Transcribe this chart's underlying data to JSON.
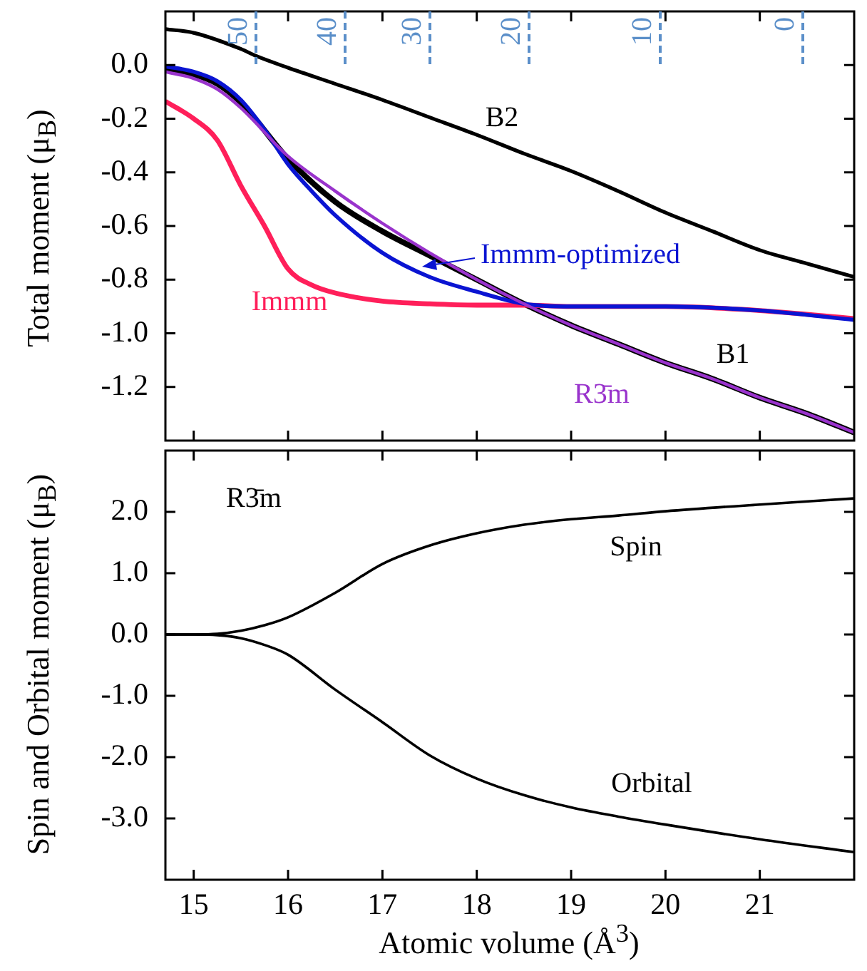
{
  "chart_data": [
    {
      "type": "line",
      "ylabel": "Total moment (μ$_{B}$)",
      "xlim": [
        14.7,
        22.0
      ],
      "xticks": [
        15,
        16,
        17,
        18,
        19,
        20,
        21
      ],
      "ylim": [
        -1.4,
        0.2
      ],
      "yticks": [
        {
          "value": 0,
          "label": "0.0"
        },
        {
          "value": -0.2,
          "label": "-0.2"
        },
        {
          "value": -0.4,
          "label": "-0.4"
        },
        {
          "value": -0.6,
          "label": "-0.6"
        },
        {
          "value": -0.8,
          "label": "-0.8"
        },
        {
          "value": -1.0,
          "label": "-1.0"
        },
        {
          "value": -1.2,
          "label": "-1.2"
        }
      ],
      "annotations": [
        "50",
        "40",
        "30",
        "20",
        "10",
        "0"
      ],
      "tick_labels": "y",
      "grid": false,
      "series": [
        {
          "name": "B2",
          "color": "#000000",
          "x": [
            14.7,
            15,
            15.5,
            15.66,
            16,
            16.5,
            17,
            17.5,
            18,
            18.5,
            19,
            19.5,
            20,
            20.5,
            21,
            21.5,
            22
          ],
          "values": [
            0.134,
            0.12,
            0.06,
            0.034,
            -0.01,
            -0.07,
            -0.13,
            -0.195,
            -0.26,
            -0.33,
            -0.395,
            -0.47,
            -0.55,
            -0.62,
            -0.69,
            -0.74,
            -0.79
          ]
        },
        {
          "name": "B1",
          "color": "#000000",
          "x": [
            14.7,
            15,
            15.25,
            15.5,
            16,
            16.5,
            17,
            17.5,
            18,
            18.5,
            19,
            19.5,
            20,
            20.5,
            21,
            21.5,
            22
          ],
          "values": [
            -0.012,
            -0.035,
            -0.07,
            -0.14,
            -0.35,
            -0.51,
            -0.62,
            -0.71,
            -0.8,
            -0.89,
            -0.97,
            -1.04,
            -1.11,
            -1.17,
            -1.24,
            -1.3,
            -1.37
          ]
        },
        {
          "name": "Immm",
          "color": "#ff1f5a",
          "x": [
            14.7,
            15,
            15.25,
            15.5,
            15.75,
            16,
            16.25,
            16.5,
            17,
            17.5,
            18,
            18.5,
            19,
            20,
            21,
            22
          ],
          "values": [
            -0.135,
            -0.2,
            -0.28,
            -0.45,
            -0.6,
            -0.76,
            -0.82,
            -0.85,
            -0.88,
            -0.89,
            -0.895,
            -0.895,
            -0.9,
            -0.9,
            -0.915,
            -0.945
          ]
        },
        {
          "name": "Immm-optimized",
          "color": "#0a14d2",
          "x": [
            14.7,
            15,
            15.25,
            15.5,
            15.75,
            16,
            16.25,
            16.5,
            17,
            17.5,
            18,
            18.5,
            19,
            20,
            21,
            22
          ],
          "values": [
            -0.005,
            -0.025,
            -0.06,
            -0.13,
            -0.24,
            -0.37,
            -0.47,
            -0.56,
            -0.7,
            -0.79,
            -0.845,
            -0.89,
            -0.9,
            -0.9,
            -0.915,
            -0.95
          ]
        },
        {
          "name": "R3̄m",
          "color": "#9933cc",
          "x": [
            14.7,
            15,
            15.25,
            15.5,
            16,
            16.5,
            17,
            17.5,
            18,
            18.5,
            19,
            19.5,
            20,
            20.5,
            21,
            21.5,
            22
          ],
          "values": [
            -0.025,
            -0.05,
            -0.09,
            -0.16,
            -0.34,
            -0.47,
            -0.59,
            -0.7,
            -0.8,
            -0.89,
            -0.97,
            -1.04,
            -1.11,
            -1.17,
            -1.24,
            -1.3,
            -1.37
          ]
        }
      ]
    },
    {
      "type": "line",
      "xlabel": "Atomic volume (Å$^{3}$)",
      "ylabel": "Spin and Orbital moment (μ$_{B}$)",
      "xlim": [
        14.7,
        22.0
      ],
      "xticks": [
        15,
        16,
        17,
        18,
        19,
        20,
        21
      ],
      "ylim": [
        -4,
        3
      ],
      "yticks": [
        {
          "value": 2,
          "label": "2.0"
        },
        {
          "value": 1,
          "label": "1.0"
        },
        {
          "value": 0,
          "label": "0.0"
        },
        {
          "value": -1,
          "label": "-1.0"
        },
        {
          "value": -2,
          "label": "-2.0"
        },
        {
          "value": -3,
          "label": "-3.0"
        }
      ],
      "grid": false,
      "annotations": [
        "R3̄m"
      ],
      "series": [
        {
          "name": "Spin",
          "color": "#000000",
          "x": [
            14.7,
            15,
            15.25,
            15.5,
            15.75,
            16,
            16.5,
            17,
            17.5,
            18,
            18.5,
            19,
            19.5,
            20,
            21,
            22
          ],
          "values": [
            0,
            0,
            0.01,
            0.06,
            0.15,
            0.28,
            0.68,
            1.15,
            1.45,
            1.65,
            1.79,
            1.88,
            1.94,
            2.01,
            2.12,
            2.22
          ]
        },
        {
          "name": "Orbital",
          "color": "#000000",
          "x": [
            14.7,
            15,
            15.25,
            15.5,
            15.75,
            16,
            16.5,
            17,
            17.5,
            18,
            18.5,
            19,
            19.5,
            20,
            21,
            22
          ],
          "values": [
            0,
            0,
            -0.01,
            -0.06,
            -0.17,
            -0.33,
            -0.9,
            -1.43,
            -1.97,
            -2.35,
            -2.62,
            -2.82,
            -2.97,
            -3.1,
            -3.34,
            -3.55
          ]
        }
      ]
    }
  ]
}
